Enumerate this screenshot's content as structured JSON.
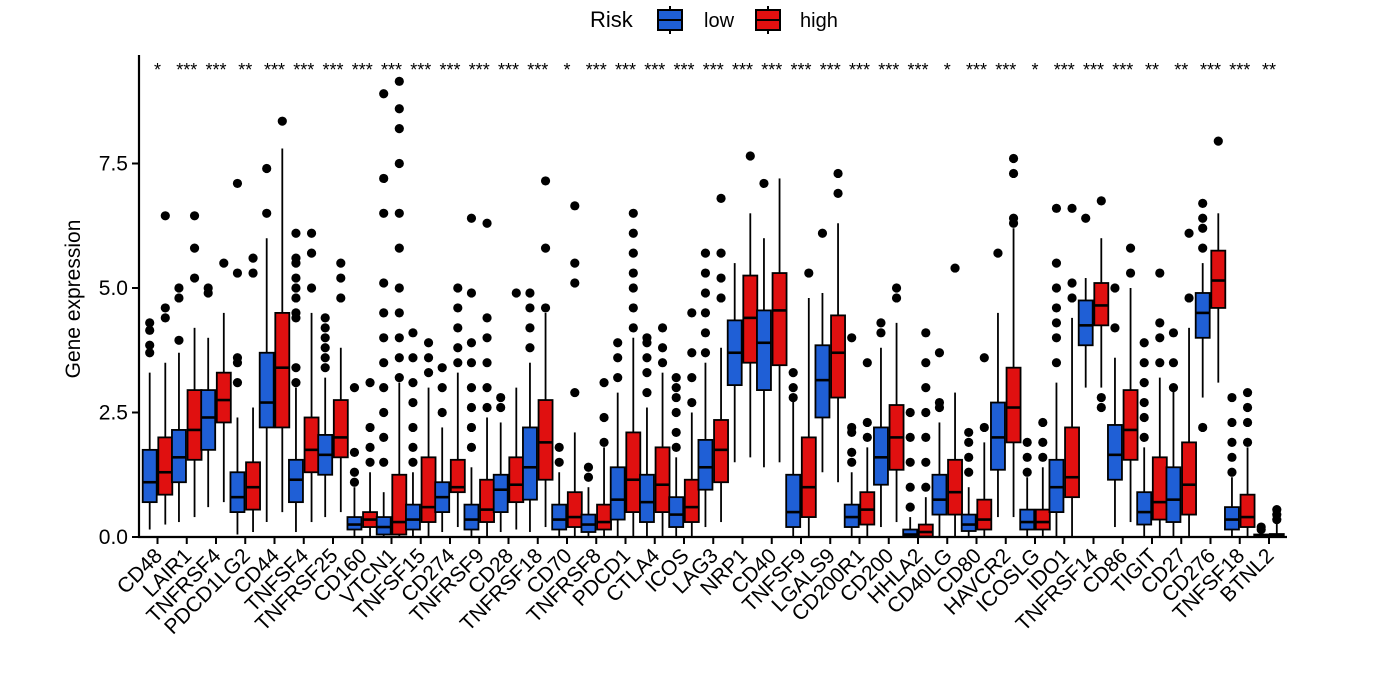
{
  "chart_data": {
    "type": "boxplot",
    "title": "",
    "xlabel": "",
    "ylabel": "Gene expression",
    "ylim": [
      0,
      9.2
    ],
    "yticks": [
      "0.0",
      "2.5",
      "5.0",
      "7.5"
    ],
    "legend": {
      "title": "Risk",
      "placement": "top",
      "entries": [
        {
          "name": "low",
          "color": "#1f5fd6"
        },
        {
          "name": "high",
          "color": "#e01010"
        }
      ]
    },
    "categories": [
      "CD48",
      "LAIR1",
      "TNFRSF4",
      "PDCD1LG2",
      "CD44",
      "TNFSF4",
      "TNFRSF25",
      "CD160",
      "VTCN1",
      "TNFSF15",
      "CD274",
      "TNFRSF9",
      "CD28",
      "TNFRSF18",
      "CD70",
      "TNFRSF8",
      "PDCD1",
      "CTLA4",
      "ICOS",
      "LAG3",
      "NRP1",
      "CD40",
      "TNFSF9",
      "LGALS9",
      "CD200R1",
      "CD200",
      "HHLA2",
      "CD40LG",
      "CD80",
      "HAVCR2",
      "ICOSLG",
      "IDO1",
      "TNFRSF14",
      "CD86",
      "TIGIT",
      "CD27",
      "CD276",
      "TNFSF18",
      "BTNL2"
    ],
    "significance": [
      "*",
      "***",
      "***",
      "**",
      "***",
      "***",
      "***",
      "***",
      "***",
      "***",
      "***",
      "***",
      "***",
      "***",
      "*",
      "***",
      "***",
      "***",
      "***",
      "***",
      "***",
      "***",
      "***",
      "***",
      "***",
      "***",
      "***",
      "*",
      "***",
      "***",
      "*",
      "***",
      "***",
      "***",
      "**",
      "**",
      "***",
      "***",
      "**"
    ],
    "series": [
      {
        "name": "low",
        "color": "#1f5fd6",
        "q1": [
          0.7,
          1.1,
          1.75,
          0.5,
          2.2,
          0.7,
          1.25,
          0.15,
          0.05,
          0.15,
          0.5,
          0.15,
          0.5,
          0.75,
          0.15,
          0.1,
          0.35,
          0.3,
          0.2,
          0.95,
          3.05,
          2.95,
          0.2,
          2.4,
          0.2,
          1.05,
          0.01,
          0.45,
          0.12,
          1.35,
          0.15,
          0.5,
          3.85,
          1.15,
          0.25,
          0.3,
          4.0,
          0.15,
          0.01
        ],
        "median": [
          1.1,
          1.6,
          2.4,
          0.8,
          2.7,
          1.15,
          1.65,
          0.25,
          0.2,
          0.35,
          0.8,
          0.35,
          0.95,
          1.4,
          0.35,
          0.25,
          0.75,
          0.7,
          0.45,
          1.4,
          3.7,
          3.9,
          0.5,
          3.15,
          0.4,
          1.6,
          0.05,
          0.75,
          0.25,
          2.0,
          0.3,
          1.0,
          4.25,
          1.65,
          0.5,
          0.75,
          4.5,
          0.35,
          0.02
        ],
        "q3": [
          1.75,
          2.15,
          2.95,
          1.3,
          3.7,
          1.55,
          2.05,
          0.4,
          0.4,
          0.65,
          1.1,
          0.65,
          1.25,
          2.2,
          0.65,
          0.45,
          1.4,
          1.25,
          0.8,
          1.95,
          4.35,
          4.55,
          1.25,
          3.85,
          0.65,
          2.2,
          0.15,
          1.25,
          0.45,
          2.7,
          0.55,
          1.55,
          4.75,
          2.25,
          0.9,
          1.4,
          4.9,
          0.6,
          0.05
        ],
        "whisker_low": [
          0.15,
          0.3,
          0.6,
          0.05,
          0.3,
          0.1,
          0.4,
          0.01,
          0.01,
          0.01,
          0.1,
          0.01,
          0.1,
          0.1,
          0.01,
          0.01,
          0.01,
          0.01,
          0.01,
          0.2,
          1.5,
          1.4,
          0.01,
          1.3,
          0.01,
          0.2,
          0.0,
          0.01,
          0.01,
          0.4,
          0.01,
          0.01,
          3.0,
          0.2,
          0.01,
          0.01,
          2.8,
          0.01,
          0.0
        ],
        "whisker_high": [
          3.3,
          3.7,
          4.0,
          2.4,
          6.0,
          3.0,
          3.2,
          1.0,
          0.9,
          1.3,
          2.2,
          1.4,
          2.3,
          3.5,
          1.3,
          1.0,
          2.9,
          2.6,
          1.6,
          3.5,
          5.5,
          6.0,
          2.8,
          4.9,
          1.3,
          3.8,
          0.4,
          2.3,
          1.0,
          4.5,
          1.2,
          3.1,
          5.2,
          3.6,
          1.8,
          3.0,
          5.5,
          1.2,
          0.1
        ],
        "outliers": [
          [
            3.7,
            3.85,
            4.15,
            4.3
          ],
          [
            3.95,
            4.8,
            5.0
          ],
          [
            4.9,
            5.0
          ],
          [
            3.1,
            3.5,
            3.6,
            5.3,
            7.1
          ],
          [
            6.5,
            7.4
          ],
          [
            3.1,
            3.4,
            4.4,
            4.5,
            4.8,
            5.0,
            5.2,
            5.5,
            5.6,
            6.1
          ],
          [
            3.4,
            3.6,
            3.8,
            4.0,
            4.2,
            4.4
          ],
          [
            1.1,
            1.3,
            1.7,
            3.0
          ],
          [
            1.5,
            2.0,
            2.5,
            3.0,
            3.5,
            4.0,
            4.5,
            5.1,
            6.5,
            7.2,
            8.9
          ],
          [
            1.5,
            1.8,
            2.2,
            2.7,
            3.1,
            3.6,
            4.1
          ],
          [
            2.5,
            3.0,
            3.4
          ],
          [
            1.8,
            2.2,
            2.6,
            3.0,
            3.5,
            3.9,
            4.9,
            6.4
          ],
          [
            2.6,
            2.8
          ],
          [
            3.8,
            4.2,
            4.6,
            4.9
          ],
          [
            1.5,
            1.8
          ],
          [
            1.2,
            1.4
          ],
          [
            3.2,
            3.6,
            3.9
          ],
          [
            2.9,
            3.3,
            3.6,
            3.9,
            4.0
          ],
          [
            1.8,
            2.1,
            2.5,
            2.8,
            3.0,
            3.2
          ],
          [
            3.7,
            4.1,
            4.5,
            4.9,
            5.3,
            5.7
          ],
          [],
          [
            7.1
          ],
          [
            2.8,
            3.0,
            3.3
          ],
          [
            6.1
          ],
          [
            1.5,
            1.7,
            2.1,
            2.2,
            4.0
          ],
          [
            4.1,
            4.3
          ],
          [
            0.6,
            1.0,
            1.5,
            2.0,
            2.5
          ],
          [
            2.6,
            2.7,
            3.7
          ],
          [
            1.3,
            1.6,
            1.9,
            2.1
          ],
          [
            5.7
          ],
          [
            1.3,
            1.6,
            1.9
          ],
          [
            3.5,
            4.0,
            4.3,
            4.6,
            5.0,
            5.5,
            6.6
          ],
          [
            6.4
          ],
          [
            4.2,
            5.0
          ],
          [
            2.0,
            2.4,
            2.7,
            3.1,
            3.5,
            3.9
          ],
          [
            3.0,
            3.5,
            4.1
          ],
          [
            2.2,
            5.8,
            6.2,
            6.4,
            6.7
          ],
          [
            1.3,
            1.6,
            1.9,
            2.3,
            2.8
          ],
          [
            0.15,
            0.2
          ]
        ]
      },
      {
        "name": "high",
        "color": "#e01010",
        "q1": [
          0.85,
          1.55,
          2.3,
          0.55,
          2.2,
          1.3,
          1.6,
          0.2,
          0.05,
          0.3,
          0.9,
          0.3,
          0.7,
          1.15,
          0.2,
          0.15,
          0.5,
          0.5,
          0.3,
          1.1,
          3.5,
          3.45,
          0.4,
          2.8,
          0.25,
          1.35,
          0.01,
          0.45,
          0.15,
          1.9,
          0.15,
          0.8,
          4.25,
          1.55,
          0.35,
          0.45,
          4.6,
          0.2,
          0.01
        ],
        "median": [
          1.3,
          2.15,
          2.75,
          1.0,
          3.4,
          1.75,
          2.0,
          0.35,
          0.3,
          0.6,
          1.0,
          0.55,
          1.05,
          1.9,
          0.4,
          0.3,
          1.15,
          1.05,
          0.6,
          1.75,
          4.4,
          4.55,
          1.0,
          3.7,
          0.55,
          2.0,
          0.1,
          0.9,
          0.35,
          2.6,
          0.3,
          1.2,
          4.65,
          2.15,
          0.7,
          1.05,
          5.15,
          0.4,
          0.03
        ],
        "q3": [
          2.0,
          2.95,
          3.3,
          1.5,
          4.5,
          2.4,
          2.75,
          0.5,
          1.25,
          1.6,
          1.55,
          1.15,
          1.6,
          2.75,
          0.9,
          0.65,
          2.1,
          1.8,
          1.15,
          2.35,
          5.25,
          5.3,
          2.0,
          4.45,
          0.9,
          2.65,
          0.25,
          1.55,
          0.75,
          3.4,
          0.55,
          2.2,
          5.1,
          2.95,
          1.6,
          1.9,
          5.75,
          0.85,
          0.06
        ],
        "whisker_low": [
          0.25,
          0.4,
          0.7,
          0.1,
          0.5,
          0.3,
          0.5,
          0.01,
          0.01,
          0.01,
          0.2,
          0.01,
          0.15,
          0.2,
          0.01,
          0.01,
          0.01,
          0.01,
          0.01,
          0.3,
          1.6,
          1.5,
          0.01,
          1.1,
          0.01,
          0.3,
          0.0,
          0.01,
          0.01,
          0.4,
          0.01,
          0.01,
          3.0,
          0.3,
          0.01,
          0.01,
          3.1,
          0.01,
          0.0
        ],
        "whisker_high": [
          3.5,
          4.2,
          4.5,
          2.6,
          7.8,
          4.5,
          3.8,
          1.3,
          3.1,
          3.0,
          3.3,
          2.4,
          3.0,
          4.5,
          2.1,
          1.8,
          4.0,
          3.3,
          2.5,
          3.8,
          6.5,
          7.2,
          4.8,
          6.3,
          1.8,
          4.3,
          0.8,
          2.9,
          1.9,
          6.2,
          1.4,
          4.4,
          6.0,
          5.0,
          3.2,
          4.2,
          6.5,
          1.8,
          0.3
        ],
        "outliers": [
          [
            4.4,
            4.6,
            6.45
          ],
          [
            5.2,
            5.8,
            6.45
          ],
          [
            5.5
          ],
          [
            5.3,
            5.6
          ],
          [
            8.35
          ],
          [
            5.0,
            5.7,
            6.1
          ],
          [
            4.8,
            5.2,
            5.5
          ],
          [
            1.5,
            1.8,
            2.2,
            3.1
          ],
          [
            3.2,
            3.6,
            4.0,
            4.5,
            5.0,
            5.8,
            6.5,
            7.5,
            8.2,
            8.6,
            9.15
          ],
          [
            3.3,
            3.6,
            3.9
          ],
          [
            3.5,
            3.8,
            4.2,
            4.6,
            5.0
          ],
          [
            2.6,
            3.0,
            3.5,
            4.0,
            4.4,
            6.3
          ],
          [
            4.9
          ],
          [
            4.6,
            5.8,
            7.15
          ],
          [
            2.9,
            5.1,
            5.5,
            6.65
          ],
          [
            1.9,
            2.4,
            3.1
          ],
          [
            4.2,
            4.6,
            5.0,
            5.3,
            5.7,
            6.1,
            6.5
          ],
          [
            3.5,
            3.8,
            4.2
          ],
          [
            2.7,
            3.2,
            3.7,
            4.5
          ],
          [
            4.8,
            5.2,
            5.7,
            6.8
          ],
          [
            7.65
          ],
          [],
          [
            5.3
          ],
          [
            6.9,
            7.3
          ],
          [
            2.0,
            2.3,
            3.5
          ],
          [
            4.8,
            5.0
          ],
          [
            1.0,
            1.5,
            2.0,
            2.5,
            3.0,
            3.5,
            4.1
          ],
          [
            5.4
          ],
          [
            2.2,
            3.6
          ],
          [
            6.3,
            6.4,
            7.3,
            7.6
          ],
          [
            1.6,
            1.9,
            2.3
          ],
          [
            4.8,
            5.1,
            6.6
          ],
          [
            2.6,
            2.8,
            6.75
          ],
          [
            5.3,
            5.8
          ],
          [
            3.5,
            4.0,
            4.3,
            5.3
          ],
          [
            4.8,
            6.1
          ],
          [
            7.95
          ],
          [
            1.9,
            2.3,
            2.6,
            2.9
          ],
          [
            0.35,
            0.45,
            0.55
          ]
        ]
      }
    ]
  }
}
